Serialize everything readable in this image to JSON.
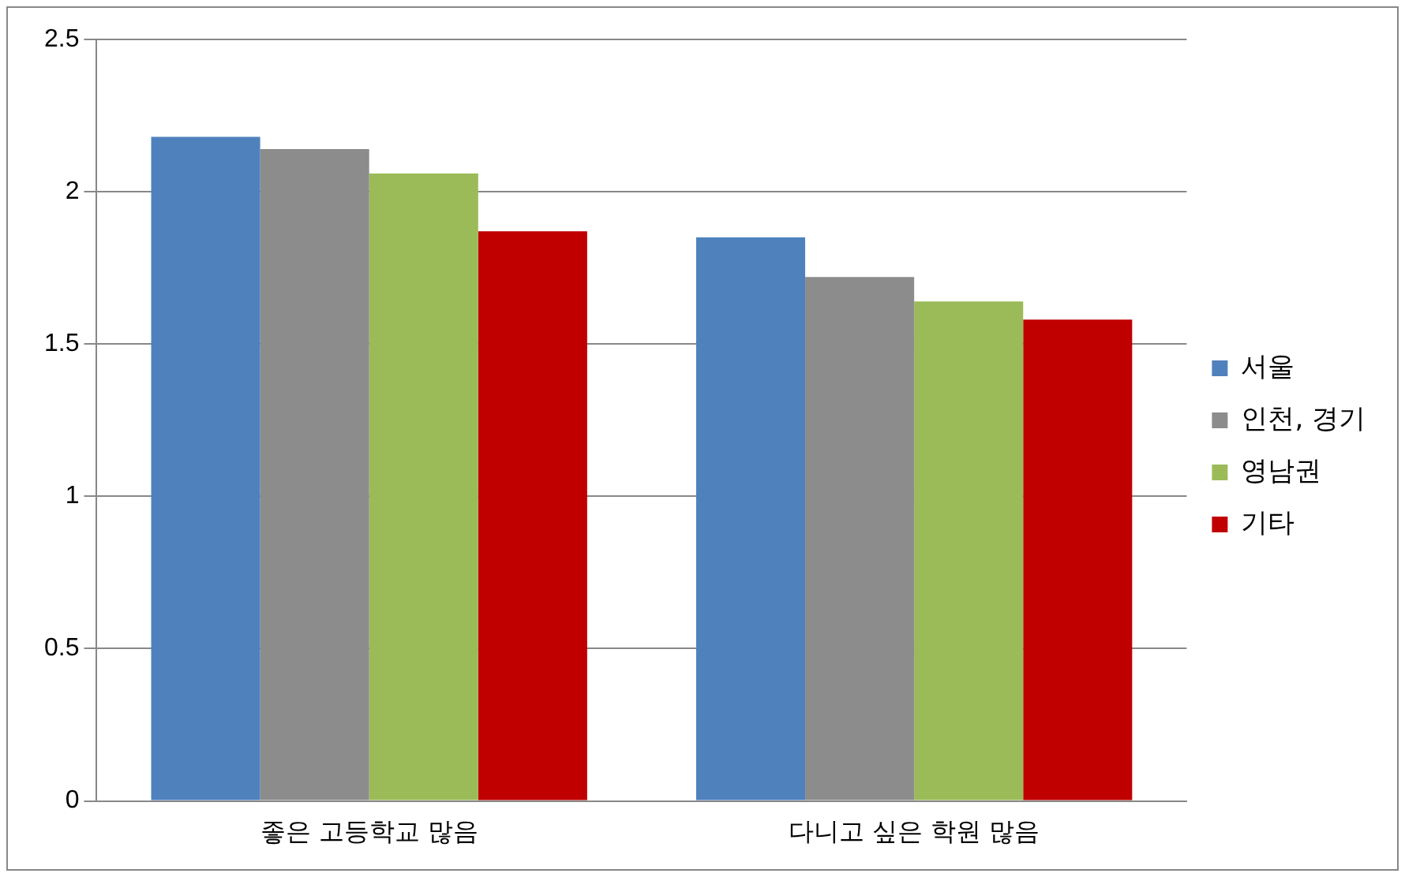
{
  "chart_data": {
    "type": "bar",
    "categories": [
      "좋은 고등학교 많음",
      "다니고 싶은 학원 많음"
    ],
    "series": [
      {
        "name": "서울",
        "color": "#4f81bd",
        "values": [
          2.18,
          1.85
        ]
      },
      {
        "name": "인천, 경기",
        "color": "#8c8c8c",
        "values": [
          2.14,
          1.72
        ]
      },
      {
        "name": "영남권",
        "color": "#9bbb59",
        "values": [
          2.06,
          1.64
        ]
      },
      {
        "name": "기타",
        "color": "#c00000",
        "values": [
          1.87,
          1.58
        ]
      }
    ],
    "ylim": [
      0,
      2.5
    ],
    "yticks": [
      0,
      0.5,
      1,
      1.5,
      2,
      2.5
    ],
    "grid": "y",
    "legend": "right"
  }
}
